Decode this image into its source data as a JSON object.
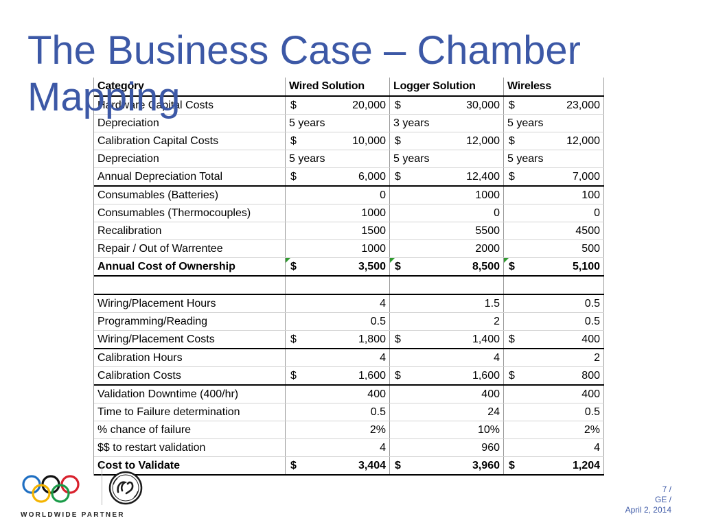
{
  "slide": {
    "title": "The Business Case – Chamber Mapping"
  },
  "table": {
    "headers": [
      "Category",
      "Wired  Solution",
      "Logger  Solution",
      "Wireless"
    ],
    "rows": [
      {
        "label": "Hardware Capital Costs",
        "type": "money",
        "values": [
          "20,000",
          "30,000",
          "23,000"
        ]
      },
      {
        "label": "Depreciation",
        "type": "text",
        "values": [
          "5 years",
          "3 years",
          "5 years"
        ]
      },
      {
        "label": "Calibration Capital Costs",
        "type": "money",
        "values": [
          "10,000",
          "12,000",
          "12,000"
        ]
      },
      {
        "label": "Depreciation",
        "type": "text",
        "values": [
          "5 years",
          "5 years",
          "5 years"
        ]
      },
      {
        "label": "Annual Depreciation Total",
        "type": "money",
        "values": [
          "6,000",
          "12,400",
          "7,000"
        ]
      },
      {
        "label": "Consumables (Batteries)",
        "type": "num",
        "values": [
          "0",
          "1000",
          "100"
        ]
      },
      {
        "label": "Consumables (Thermocouples)",
        "type": "num",
        "values": [
          "1000",
          "0",
          "0"
        ]
      },
      {
        "label": "Recalibration",
        "type": "num",
        "values": [
          "1500",
          "5500",
          "4500"
        ]
      },
      {
        "label": "Repair / Out of Warrentee",
        "type": "num",
        "values": [
          "1000",
          "2000",
          "500"
        ]
      },
      {
        "label": "Annual  Cost  of  Ownership",
        "type": "money",
        "values": [
          "3,500",
          "8,500",
          "5,100"
        ]
      },
      {
        "label": "",
        "type": "num",
        "values": [
          "",
          "",
          ""
        ]
      },
      {
        "label": "Wiring/Placement Hours",
        "type": "num",
        "values": [
          "4",
          "1.5",
          "0.5"
        ]
      },
      {
        "label": "Programming/Reading",
        "type": "num",
        "values": [
          "0.5",
          "2",
          "0.5"
        ]
      },
      {
        "label": "Wiring/Placement Costs",
        "type": "money",
        "values": [
          "1,800",
          "1,400",
          "400"
        ]
      },
      {
        "label": "Calibration Hours",
        "type": "num",
        "values": [
          "4",
          "4",
          "2"
        ]
      },
      {
        "label": "Calibration Costs",
        "type": "money",
        "values": [
          "1,600",
          "1,600",
          "800"
        ]
      },
      {
        "label": "Validation Downtime (400/hr)",
        "type": "num",
        "values": [
          "400",
          "400",
          "400"
        ]
      },
      {
        "label": "Time to Failure determination",
        "type": "num",
        "values": [
          "0.5",
          "24",
          "0.5"
        ]
      },
      {
        "label": "% chance of failure",
        "type": "num",
        "values": [
          "2%",
          "10%",
          "2%"
        ]
      },
      {
        "label": "$$ to restart validation",
        "type": "num",
        "values": [
          "4",
          "960",
          "4"
        ]
      },
      {
        "label": "Cost  to  Validate",
        "type": "money",
        "values": [
          "3,404",
          "3,960",
          "1,204"
        ]
      }
    ],
    "currency_symbol": "$"
  },
  "footer": {
    "partner_text": "WORLDWIDE PARTNER",
    "page": "7 /",
    "company": "GE /",
    "date": "April 2, 2014"
  },
  "colors": {
    "title": "#3c58a6",
    "flag": "#2e9a2e"
  }
}
